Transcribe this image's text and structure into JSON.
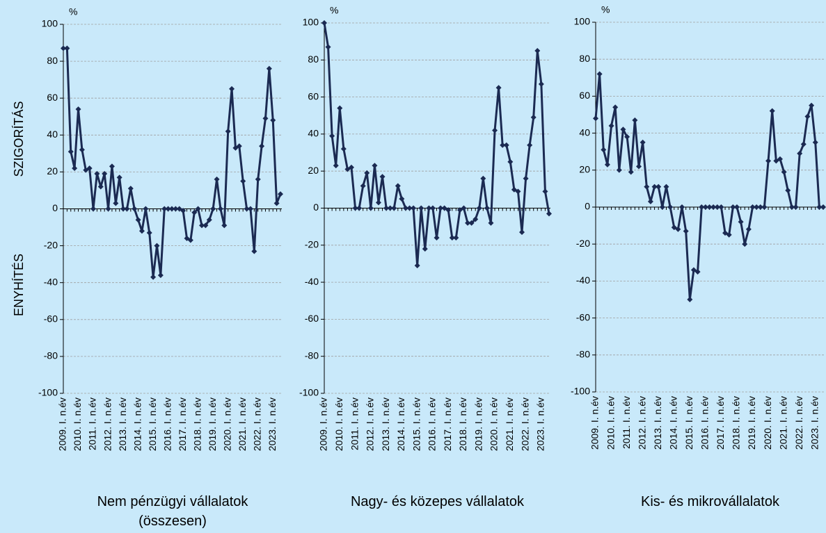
{
  "chart_data": [
    {
      "type": "line",
      "title": "Nem pénzügyi vállalatok (összesen)",
      "y_unit": "%",
      "y_label_top": "SZIGORÍTÁS",
      "y_label_bottom": "ENYHÍTÉS",
      "categories": [
        "2009. I. n.év",
        null,
        null,
        null,
        "2010. I. n.év",
        null,
        null,
        null,
        "2011. I. n.év",
        null,
        null,
        null,
        "2012. I. n.év",
        null,
        null,
        null,
        "2013. I. n.év",
        null,
        null,
        null,
        "2014. I. n.év",
        null,
        null,
        null,
        "2015. I. n.év",
        null,
        null,
        null,
        "2016. I. n.év",
        null,
        null,
        null,
        "2017. I. n.év",
        null,
        null,
        null,
        "2018. I. n.év",
        null,
        null,
        null,
        "2019. I. n.év",
        null,
        null,
        null,
        "2020. I. n.év",
        null,
        null,
        null,
        "2021. I. n.év",
        null,
        null,
        null,
        "2022. I. n.év",
        null,
        null,
        null,
        "2023. I. n.év",
        null,
        null
      ],
      "values": [
        87,
        87,
        31,
        22,
        54,
        32,
        21,
        22,
        0,
        19,
        12,
        19,
        0,
        23,
        3,
        17,
        0,
        0,
        11,
        0,
        -6,
        -12,
        0,
        -13,
        -37,
        -20,
        -36,
        0,
        0,
        0,
        0,
        0,
        -1,
        -16,
        -17,
        -2,
        0,
        -9,
        -9,
        -6,
        0,
        16,
        0,
        -9,
        42,
        65,
        33,
        34,
        15,
        0,
        0,
        -23,
        16,
        34,
        49,
        76,
        48,
        3,
        8
      ],
      "color": "#1b2a52",
      "ylim": [
        -100,
        100
      ],
      "yticks": [
        -100,
        -80,
        -60,
        -40,
        -20,
        0,
        20,
        40,
        60,
        80,
        100
      ],
      "grid": true
    },
    {
      "type": "line",
      "title": "Nagy- és közepes vállalatok",
      "y_unit": "%",
      "categories": [
        "2009. I. n.év",
        null,
        null,
        null,
        "2010. I. n.év",
        null,
        null,
        null,
        "2011. I. n.év",
        null,
        null,
        null,
        "2012. I. n.év",
        null,
        null,
        null,
        "2013. I. n.év",
        null,
        null,
        null,
        "2014. I. n.év",
        null,
        null,
        null,
        "2015. I. n.év",
        null,
        null,
        null,
        "2016. I. n.év",
        null,
        null,
        null,
        "2017. I. n.év",
        null,
        null,
        null,
        "2018. I. n.év",
        null,
        null,
        null,
        "2019. I. n.év",
        null,
        null,
        null,
        "2020. I. n.év",
        null,
        null,
        null,
        "2021. I. n.év",
        null,
        null,
        null,
        "2022. I. n.év",
        null,
        null,
        null,
        "2023. I. n.év",
        null,
        null
      ],
      "values": [
        100,
        87,
        39,
        23,
        54,
        32,
        21,
        22,
        0,
        0,
        12,
        19,
        0,
        23,
        3,
        17,
        0,
        0,
        0,
        12,
        5,
        0,
        0,
        0,
        -31,
        0,
        -22,
        0,
        0,
        -16,
        0,
        0,
        -1,
        -16,
        -16,
        -1,
        0,
        -8,
        -8,
        -6,
        0,
        16,
        0,
        -8,
        42,
        65,
        34,
        34,
        25,
        10,
        9,
        -13,
        16,
        34,
        49,
        85,
        67,
        9,
        -3
      ],
      "color": "#1b2a52",
      "ylim": [
        -100,
        100
      ],
      "yticks": [
        -100,
        -80,
        -60,
        -40,
        -20,
        0,
        20,
        40,
        60,
        80,
        100
      ],
      "grid": true
    },
    {
      "type": "line",
      "title": "Kis- és mikrovállalatok",
      "y_unit": "%",
      "categories": [
        "2009. I. n.év",
        null,
        null,
        null,
        "2010. I. n.év",
        null,
        null,
        null,
        "2011. I. n.év",
        null,
        null,
        null,
        "2012. I. n.év",
        null,
        null,
        null,
        "2013. I. n.év",
        null,
        null,
        null,
        "2014. I. n.év",
        null,
        null,
        null,
        "2015. I. n.év",
        null,
        null,
        null,
        "2016. I. n.év",
        null,
        null,
        null,
        "2017. I. n.év",
        null,
        null,
        null,
        "2018. I. n.év",
        null,
        null,
        null,
        "2019. I. n.év",
        null,
        null,
        null,
        "2020. I. n.év",
        null,
        null,
        null,
        "2021. I. n.év",
        null,
        null,
        null,
        "2022. I. n.év",
        null,
        null,
        null,
        "2023. I. n.év",
        null,
        null
      ],
      "values": [
        48,
        72,
        31,
        23,
        44,
        54,
        20,
        42,
        38,
        19,
        47,
        22,
        35,
        11,
        3,
        11,
        11,
        0,
        11,
        0,
        -11,
        -12,
        0,
        -13,
        -50,
        -34,
        -35,
        0,
        0,
        0,
        0,
        0,
        0,
        -14,
        -15,
        0,
        0,
        -8,
        -20,
        -12,
        0,
        0,
        0,
        0,
        25,
        52,
        25,
        26,
        19,
        9,
        0,
        0,
        29,
        34,
        49,
        55,
        35,
        0,
        0
      ],
      "color": "#1b2a52",
      "ylim": [
        -100,
        100
      ],
      "yticks": [
        -100,
        -80,
        -60,
        -40,
        -20,
        0,
        20,
        40,
        60,
        80,
        100
      ],
      "grid": true
    }
  ]
}
